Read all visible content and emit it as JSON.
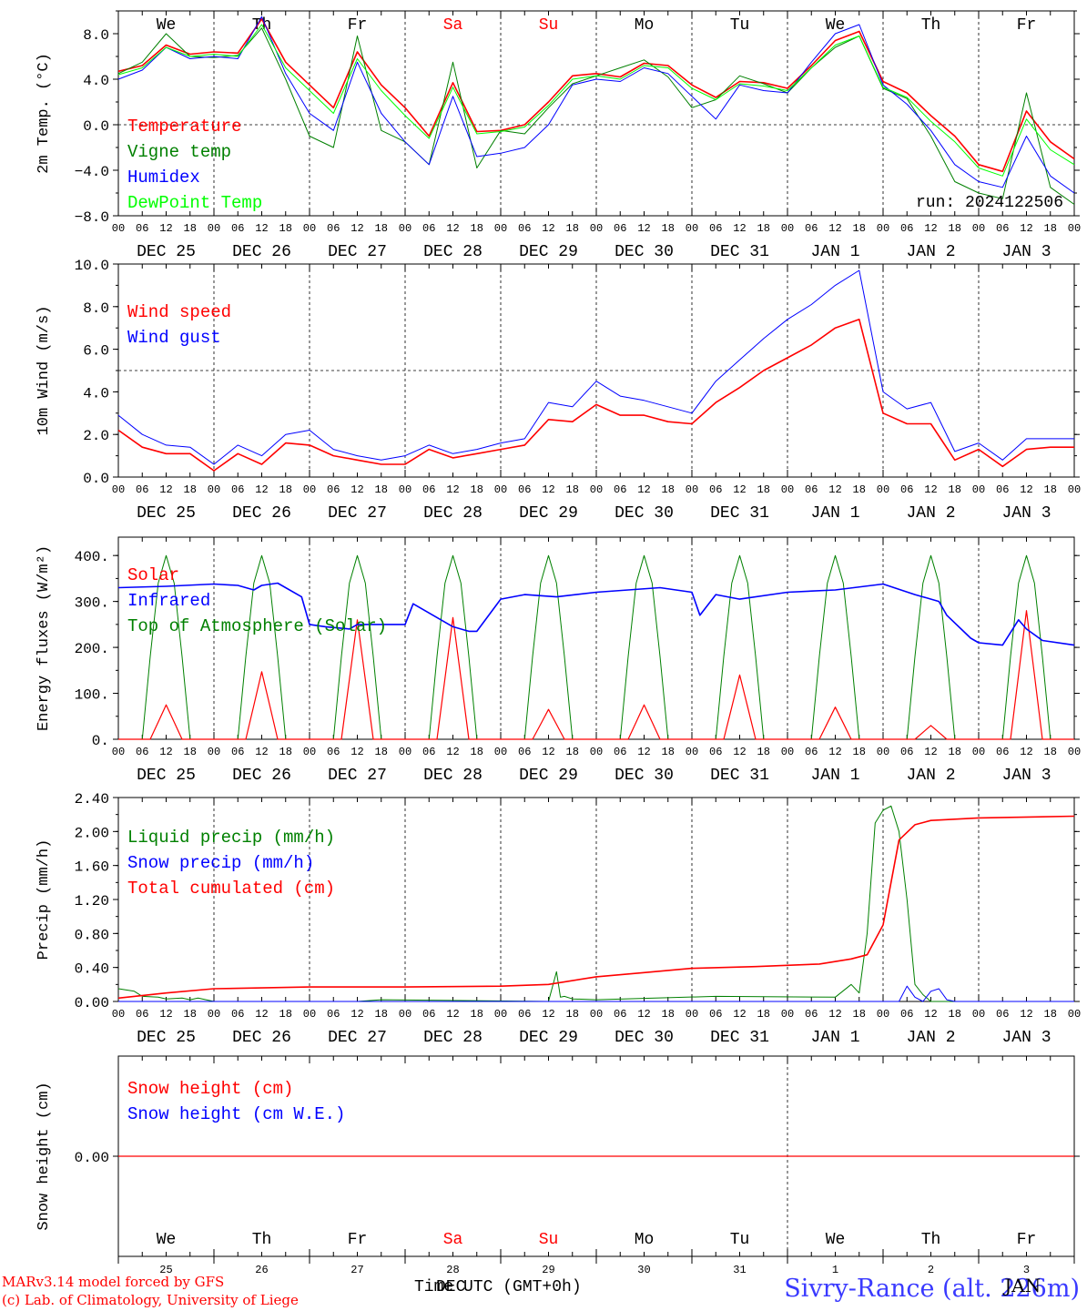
{
  "footer": {
    "model": "MARv3.14 model forced by GFS",
    "credit": "(c) Lab. of Climatology, University of Liege",
    "time_label": "Time UTC (GMT+0h)",
    "time_overlay": "DEC",
    "station": "Sivry-Rance (alt. 226m)",
    "station_overlay": "JAN"
  },
  "run_label": "run: 2024122506",
  "colors": {
    "red": "#ff0000",
    "green": "#008000",
    "blue": "#0000ff",
    "lightgreen": "#00ff00"
  },
  "chart_data": [
    {
      "type": "line",
      "ylabel": "2m Temp. (°C)",
      "ylim": [
        -8,
        10
      ],
      "yticks": [
        -8,
        -4,
        0,
        4,
        8
      ],
      "ytick_labels": [
        "−8.0",
        "−4.0",
        "0.0",
        "4.0",
        "8.0"
      ],
      "refline": 0,
      "top_day_labels": [
        {
          "text": "We",
          "color": "#000000"
        },
        {
          "text": "Th",
          "color": "#000000"
        },
        {
          "text": "Fr",
          "color": "#000000"
        },
        {
          "text": "Sa",
          "color": "#ff0000"
        },
        {
          "text": "Su",
          "color": "#ff0000"
        },
        {
          "text": "Mo",
          "color": "#000000"
        },
        {
          "text": "Tu",
          "color": "#000000"
        },
        {
          "text": "We",
          "color": "#000000"
        },
        {
          "text": "Th",
          "color": "#000000"
        },
        {
          "text": "Fr",
          "color": "#000000"
        }
      ],
      "x_hours": [
        0,
        6,
        12,
        18,
        24,
        30,
        36,
        42,
        48,
        54,
        60,
        66,
        72,
        78,
        84,
        90,
        96,
        102,
        108,
        114,
        120,
        126,
        132,
        138,
        144,
        150,
        156,
        162,
        168,
        174,
        180,
        186,
        192,
        198,
        204,
        210,
        216,
        222,
        228,
        234,
        240
      ],
      "series": [
        {
          "name": "Temperature",
          "color": "#ff0000",
          "width": 1.6,
          "values": [
            4.7,
            5.2,
            7.0,
            6.2,
            6.4,
            6.3,
            9.3,
            5.5,
            3.5,
            1.5,
            6.4,
            3.5,
            1.5,
            -1.0,
            3.7,
            -0.6,
            -0.5,
            0.0,
            2.0,
            4.3,
            4.5,
            4.2,
            5.4,
            5.2,
            3.5,
            2.4,
            3.8,
            3.7,
            3.2,
            5.2,
            7.4,
            8.2,
            3.8,
            2.8,
            0.8,
            -1.0,
            -3.5,
            -4.1,
            1.2,
            -1.5,
            -3.0
          ]
        },
        {
          "name": "Vigne temp",
          "color": "#008000",
          "width": 1.0,
          "values": [
            4.5,
            5.5,
            8.0,
            6.0,
            5.9,
            6.1,
            8.5,
            4.0,
            -1.0,
            -2.0,
            7.8,
            -0.5,
            -1.5,
            -3.5,
            5.5,
            -3.8,
            -0.5,
            -0.8,
            1.5,
            3.6,
            4.3,
            5.0,
            5.7,
            4.2,
            1.5,
            2.2,
            4.3,
            3.6,
            2.8,
            5.0,
            6.8,
            7.8,
            3.2,
            2.3,
            -1.0,
            -5.0,
            -6.0,
            -6.5,
            2.8,
            -5.5,
            -7.0
          ]
        },
        {
          "name": "Humidex",
          "color": "#0000ff",
          "width": 1.0,
          "values": [
            4.0,
            4.8,
            6.8,
            5.8,
            6.0,
            5.8,
            9.5,
            4.5,
            1.0,
            -0.5,
            5.5,
            1.0,
            -1.5,
            -3.5,
            2.5,
            -2.8,
            -2.5,
            -2.0,
            0.0,
            3.5,
            4.0,
            3.8,
            5.0,
            4.5,
            2.5,
            0.5,
            3.5,
            3.0,
            2.8,
            5.5,
            8.0,
            8.8,
            3.5,
            1.8,
            -0.5,
            -3.5,
            -5.0,
            -5.5,
            -1.0,
            -4.5,
            -6.0
          ]
        },
        {
          "name": "DewPoint Temp",
          "color": "#00ff00",
          "width": 1.0,
          "values": [
            4.4,
            5.0,
            6.8,
            6.0,
            6.2,
            6.0,
            8.8,
            5.0,
            3.0,
            1.0,
            5.8,
            3.0,
            0.8,
            -1.2,
            3.3,
            -0.8,
            -0.6,
            -0.2,
            1.7,
            4.0,
            4.3,
            4.0,
            5.2,
            5.0,
            3.2,
            2.2,
            3.6,
            3.4,
            3.0,
            5.0,
            7.0,
            7.8,
            3.3,
            2.4,
            0.3,
            -1.5,
            -3.8,
            -4.5,
            0.5,
            -2.2,
            -3.5
          ]
        }
      ]
    },
    {
      "type": "line",
      "ylabel": "10m Wind (m/s)",
      "ylim": [
        0,
        10
      ],
      "yticks": [
        0,
        2,
        4,
        6,
        8,
        10
      ],
      "ytick_labels": [
        "0.0",
        "2.0",
        "4.0",
        "6.0",
        "8.0",
        "10.0"
      ],
      "refline": 5,
      "x_hours": [
        0,
        6,
        12,
        18,
        24,
        30,
        36,
        42,
        48,
        54,
        60,
        66,
        72,
        78,
        84,
        90,
        96,
        102,
        108,
        114,
        120,
        126,
        132,
        138,
        144,
        150,
        156,
        162,
        168,
        174,
        180,
        186,
        192,
        198,
        204,
        210,
        216,
        222,
        228,
        234,
        240
      ],
      "series": [
        {
          "name": "Wind speed",
          "color": "#ff0000",
          "width": 1.6,
          "values": [
            2.2,
            1.4,
            1.1,
            1.1,
            0.3,
            1.1,
            0.6,
            1.6,
            1.5,
            1.0,
            0.8,
            0.6,
            0.6,
            1.3,
            0.9,
            1.1,
            1.3,
            1.5,
            2.7,
            2.6,
            3.4,
            2.9,
            2.9,
            2.6,
            2.5,
            3.5,
            4.2,
            5.0,
            5.6,
            6.2,
            7.0,
            7.4,
            3.0,
            2.5,
            2.5,
            0.8,
            1.3,
            0.5,
            1.3,
            1.4,
            1.4
          ]
        },
        {
          "name": "Wind gust",
          "color": "#0000ff",
          "width": 1.0,
          "values": [
            2.9,
            2.0,
            1.5,
            1.4,
            0.6,
            1.5,
            1.0,
            2.0,
            2.2,
            1.3,
            1.0,
            0.8,
            1.0,
            1.5,
            1.1,
            1.3,
            1.6,
            1.8,
            3.5,
            3.3,
            4.5,
            3.8,
            3.6,
            3.3,
            3.0,
            4.5,
            5.5,
            6.5,
            7.4,
            8.1,
            9.0,
            9.7,
            4.0,
            3.2,
            3.5,
            1.2,
            1.6,
            0.8,
            1.8,
            1.8,
            1.8
          ]
        }
      ]
    },
    {
      "type": "line",
      "ylabel": "Energy fluxes (W/m²)",
      "ylim": [
        0,
        440
      ],
      "yticks": [
        0,
        100,
        200,
        300,
        400
      ],
      "ytick_labels": [
        "0.",
        "100.",
        "200.",
        "300.",
        "400."
      ],
      "solar_peaks": [
        75,
        147,
        260,
        265,
        65,
        75,
        140,
        70,
        30,
        280
      ],
      "toa_peak": 400,
      "infrared": {
        "x_hours": [
          0,
          12,
          24,
          30,
          34,
          36,
          40,
          46,
          48,
          52,
          58,
          60,
          72,
          74,
          84,
          88,
          90,
          96,
          102,
          110,
          120,
          136,
          144,
          146,
          150,
          156,
          168,
          180,
          192,
          200,
          202,
          206,
          208,
          214,
          216,
          222,
          226,
          228,
          232,
          240
        ],
        "values": [
          330,
          333,
          338,
          335,
          325,
          335,
          340,
          310,
          250,
          245,
          240,
          250,
          250,
          295,
          245,
          235,
          235,
          305,
          315,
          310,
          320,
          330,
          320,
          270,
          315,
          305,
          320,
          325,
          338,
          315,
          310,
          300,
          270,
          220,
          210,
          205,
          260,
          240,
          215,
          205
        ]
      },
      "series": [
        {
          "name": "Solar",
          "color": "#ff0000",
          "width": 1.2
        },
        {
          "name": "Infrared",
          "color": "#0000ff",
          "width": 1.6
        },
        {
          "name": "Top of Atmosphere (Solar)",
          "color": "#008000",
          "width": 1.0
        }
      ]
    },
    {
      "type": "line",
      "ylabel": "Precip (mm/h)",
      "ylim": [
        0,
        2.4
      ],
      "yticks": [
        0,
        0.4,
        0.8,
        1.2,
        1.6,
        2.0,
        2.4
      ],
      "ytick_labels": [
        "0.00",
        "0.40",
        "0.80",
        "1.20",
        "1.60",
        "2.00",
        "2.40"
      ],
      "series": [
        {
          "name": "Liquid precip (mm/h)",
          "color": "#008000",
          "width": 1.0,
          "x_hours": [
            0,
            4,
            6,
            10,
            12,
            16,
            18,
            20,
            24,
            60,
            66,
            108,
            110,
            111,
            112,
            114,
            120,
            150,
            180,
            184,
            186,
            188,
            190,
            192,
            194,
            196,
            198,
            200,
            202,
            204,
            240
          ],
          "values": [
            0.15,
            0.12,
            0.06,
            0.05,
            0.03,
            0.04,
            0.02,
            0.04,
            0.0,
            0.0,
            0.02,
            0.0,
            0.35,
            0.05,
            0.06,
            0.03,
            0.02,
            0.06,
            0.05,
            0.2,
            0.1,
            0.8,
            2.1,
            2.25,
            2.3,
            2.0,
            1.2,
            0.2,
            0.08,
            0.0,
            0.0
          ]
        },
        {
          "name": "Snow precip (mm/h)",
          "color": "#0000ff",
          "width": 1.0,
          "x_hours": [
            0,
            196,
            198,
            200,
            202,
            204,
            206,
            208,
            210,
            240
          ],
          "values": [
            0.0,
            0.0,
            0.18,
            0.05,
            0.0,
            0.12,
            0.15,
            0.02,
            0.0,
            0.0
          ]
        },
        {
          "name": "Total cumulated (cm)",
          "color": "#ff0000",
          "width": 1.6,
          "x_hours": [
            0,
            12,
            24,
            48,
            72,
            96,
            108,
            120,
            132,
            144,
            160,
            176,
            184,
            188,
            192,
            196,
            200,
            204,
            216,
            240
          ],
          "values": [
            0.04,
            0.1,
            0.15,
            0.17,
            0.17,
            0.18,
            0.2,
            0.29,
            0.34,
            0.39,
            0.41,
            0.44,
            0.5,
            0.55,
            0.9,
            1.9,
            2.08,
            2.13,
            2.16,
            2.18
          ]
        }
      ]
    },
    {
      "type": "line",
      "ylabel": "Snow height (cm)",
      "ylim": [
        -1,
        1
      ],
      "yticks": [
        0
      ],
      "ytick_labels": [
        "0.00"
      ],
      "bottom_day_labels": [
        {
          "text": "We",
          "color": "#000000"
        },
        {
          "text": "Th",
          "color": "#000000"
        },
        {
          "text": "Fr",
          "color": "#000000"
        },
        {
          "text": "Sa",
          "color": "#ff0000"
        },
        {
          "text": "Su",
          "color": "#ff0000"
        },
        {
          "text": "Mo",
          "color": "#000000"
        },
        {
          "text": "Tu",
          "color": "#000000"
        },
        {
          "text": "We",
          "color": "#000000"
        },
        {
          "text": "Th",
          "color": "#000000"
        },
        {
          "text": "Fr",
          "color": "#000000"
        }
      ],
      "day_numbers": [
        "25",
        "26",
        "27",
        "28",
        "29",
        "30",
        "31",
        "1",
        "2",
        "3"
      ],
      "series": [
        {
          "name": "Snow height (cm)",
          "color": "#ff0000",
          "width": 1.2,
          "x_hours": [
            0,
            240
          ],
          "values": [
            0,
            0
          ]
        },
        {
          "name": "Snow height (cm W.E.)",
          "color": "#0000ff",
          "width": 1.0
        }
      ]
    }
  ],
  "x_axis": {
    "hour_labels": [
      "00",
      "06",
      "12",
      "18"
    ],
    "end_label": "00",
    "date_labels": [
      "DEC 25",
      "DEC 26",
      "DEC 27",
      "DEC 28",
      "DEC 29",
      "DEC 30",
      "DEC 31",
      "JAN  1",
      "JAN  2",
      "JAN  3"
    ]
  }
}
